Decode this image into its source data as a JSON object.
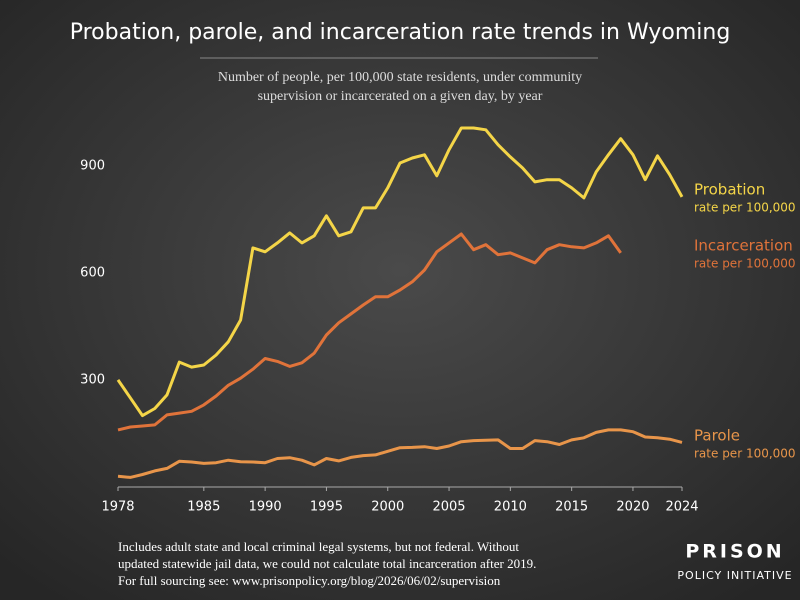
{
  "chart_data": {
    "type": "line",
    "title": "Probation, parole, and incarceration rate trends in Wyoming",
    "subtitle": [
      "Number of people, per 100,000 state residents, under community",
      "supervision or incarcerated on a given day, by year"
    ],
    "footnote": [
      "Includes adult state and local criminal legal systems, but not federal. Without",
      "updated statewide jail data, we could not calculate total incarceration after 2019.",
      "For full sourcing see: www.prisonpolicy.org/blog/2026/06/02/supervision"
    ],
    "x": [
      1978,
      1979,
      1980,
      1981,
      1982,
      1983,
      1984,
      1985,
      1986,
      1987,
      1988,
      1989,
      1990,
      1991,
      1992,
      1993,
      1994,
      1995,
      1996,
      1997,
      1998,
      1999,
      2000,
      2001,
      2002,
      2003,
      2004,
      2005,
      2006,
      2007,
      2008,
      2009,
      2010,
      2011,
      2012,
      2013,
      2014,
      2015,
      2016,
      2017,
      2018,
      2019,
      2020,
      2021,
      2022,
      2023,
      2024
    ],
    "series": [
      {
        "name": "Probation",
        "note": "rate per 100,000",
        "color": "#f4d548",
        "values": [
          300,
          250,
          200,
          220,
          258,
          350,
          336,
          342,
          370,
          407,
          468,
          670,
          659,
          684,
          712,
          684,
          704,
          760,
          704,
          715,
          782,
          782,
          838,
          908,
          922,
          931,
          872,
          945,
          1006,
          1006,
          1001,
          959,
          925,
          894,
          855,
          861,
          861,
          838,
          810,
          883,
          931,
          976,
          931,
          861,
          928,
          875,
          813
        ]
      },
      {
        "name": "Incarceration",
        "note": "rate per 100,000",
        "color": "#e0733a",
        "values": [
          160,
          168,
          171,
          174,
          202,
          207,
          212,
          230,
          255,
          285,
          305,
          330,
          360,
          352,
          338,
          348,
          375,
          426,
          460,
          485,
          510,
          533,
          533,
          552,
          575,
          608,
          659,
          684,
          709,
          665,
          679,
          651,
          656,
          642,
          628,
          665,
          679,
          673,
          670,
          684,
          704,
          656,
          null,
          null,
          null,
          null,
          null
        ]
      },
      {
        "name": "Parole",
        "note": "rate per 100,000",
        "color": "#e8954a",
        "values": [
          30,
          27,
          35,
          45,
          52,
          72,
          70,
          66,
          68,
          75,
          71,
          70,
          68,
          80,
          82,
          75,
          62,
          80,
          73,
          83,
          88,
          90,
          100,
          110,
          111,
          113,
          108,
          115,
          127,
          130,
          131,
          132,
          108,
          108,
          130,
          127,
          119,
          132,
          138,
          153,
          160,
          160,
          155,
          140,
          138,
          134,
          125
        ]
      }
    ],
    "xlim": [
      1978,
      2024
    ],
    "xticks": [
      1978,
      1985,
      1990,
      1995,
      2000,
      2005,
      2010,
      2015,
      2020,
      2024
    ],
    "ylim": [
      0,
      1020
    ],
    "yticks": [
      300,
      600,
      900
    ],
    "grid": false
  },
  "logo": {
    "line1": "PRISON",
    "line2": "POLICY INITIATIVE"
  }
}
